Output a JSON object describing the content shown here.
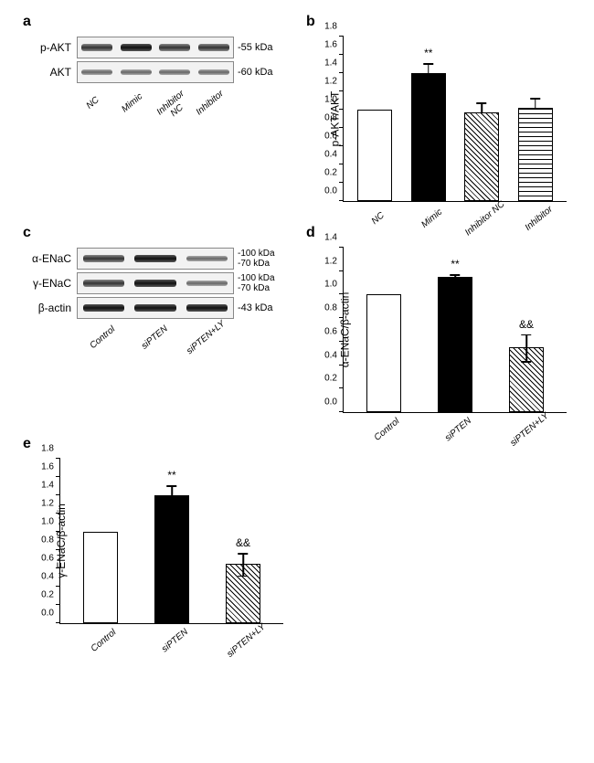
{
  "panel_a": {
    "label": "a",
    "rows": [
      {
        "label": "p-AKT",
        "mw": "-55 kDa",
        "bands": [
          "normal",
          "strong",
          "normal",
          "normal"
        ]
      },
      {
        "label": "AKT",
        "mw": "-60 kDa",
        "bands": [
          "weak",
          "weak",
          "weak",
          "weak"
        ]
      }
    ],
    "lanes": [
      "NC",
      "Mimic",
      "Inhibitor NC",
      "Inhibitor"
    ]
  },
  "panel_b": {
    "label": "b",
    "ylabel": "p-AKT/AKT",
    "ymax": 1.8,
    "ystep": 0.2,
    "bars": [
      {
        "label": "NC",
        "value": 1.0,
        "err": 0,
        "fill": "white",
        "sig": ""
      },
      {
        "label": "Mimic",
        "value": 1.4,
        "err": 0.12,
        "fill": "black",
        "sig": "**"
      },
      {
        "label": "Inhibitor NC",
        "value": 0.97,
        "err": 0.12,
        "fill": "diag",
        "sig": ""
      },
      {
        "label": "Inhibitor",
        "value": 1.02,
        "err": 0.12,
        "fill": "grid",
        "sig": ""
      }
    ]
  },
  "panel_c": {
    "label": "c",
    "rows": [
      {
        "label": "α-ENaC",
        "mw_top": "-100 kDa",
        "mw_bot": "-70 kDa",
        "bands": [
          "normal",
          "strong",
          "weak"
        ]
      },
      {
        "label": "γ-ENaC",
        "mw_top": "-100 kDa",
        "mw_bot": "-70 kDa",
        "bands": [
          "normal",
          "strong",
          "weak"
        ]
      },
      {
        "label": "β-actin",
        "mw": "-43 kDa",
        "bands": [
          "strong",
          "strong",
          "strong"
        ]
      }
    ],
    "lanes": [
      "Control",
      "siPTEN",
      "siPTEN+LY"
    ]
  },
  "panel_d": {
    "label": "d",
    "ylabel": "α-ENaC/β-actin",
    "ymax": 1.4,
    "ystep": 0.2,
    "bars": [
      {
        "label": "Control",
        "value": 1.0,
        "err": 0,
        "fill": "white",
        "sig": ""
      },
      {
        "label": "siPTEN",
        "value": 1.15,
        "err": 0.03,
        "fill": "black",
        "sig": "**"
      },
      {
        "label": "siPTEN+LY",
        "value": 0.55,
        "err": 0.12,
        "fill": "diag",
        "sig": "&&",
        "errboth": true
      }
    ]
  },
  "panel_e": {
    "label": "e",
    "ylabel": "γ-ENaC/β-actin",
    "ymax": 1.8,
    "ystep": 0.2,
    "bars": [
      {
        "label": "Control",
        "value": 1.0,
        "err": 0,
        "fill": "white",
        "sig": ""
      },
      {
        "label": "siPTEN",
        "value": 1.4,
        "err": 0.12,
        "fill": "black",
        "sig": "**"
      },
      {
        "label": "siPTEN+LY",
        "value": 0.65,
        "err": 0.13,
        "fill": "diag",
        "sig": "&&",
        "errboth": true
      }
    ]
  }
}
